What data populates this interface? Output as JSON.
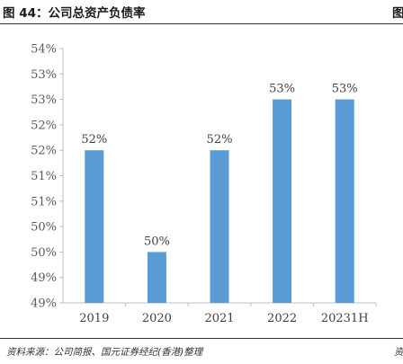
{
  "header": {
    "title": "图 44：公司总资产负债率",
    "right_cut": "图"
  },
  "footer": {
    "source": "资料来源：公司简报、国元证券经纪(香港)整理",
    "right_cut": "资"
  },
  "chart_data": {
    "type": "bar",
    "categories": [
      "2019",
      "2020",
      "2021",
      "2022",
      "20231H"
    ],
    "values": [
      52,
      50,
      52,
      53,
      53
    ],
    "data_labels": [
      "52%",
      "50%",
      "52%",
      "53%",
      "53%"
    ],
    "yticks": [
      "49%",
      "49%",
      "50%",
      "50%",
      "51%",
      "51%",
      "52%",
      "52%",
      "53%",
      "53%",
      "54%"
    ],
    "ylim": [
      49,
      54
    ],
    "bar_color": "#5b9bd5",
    "axis_color": "#bfbfbf",
    "grid": false,
    "legend": "none"
  }
}
